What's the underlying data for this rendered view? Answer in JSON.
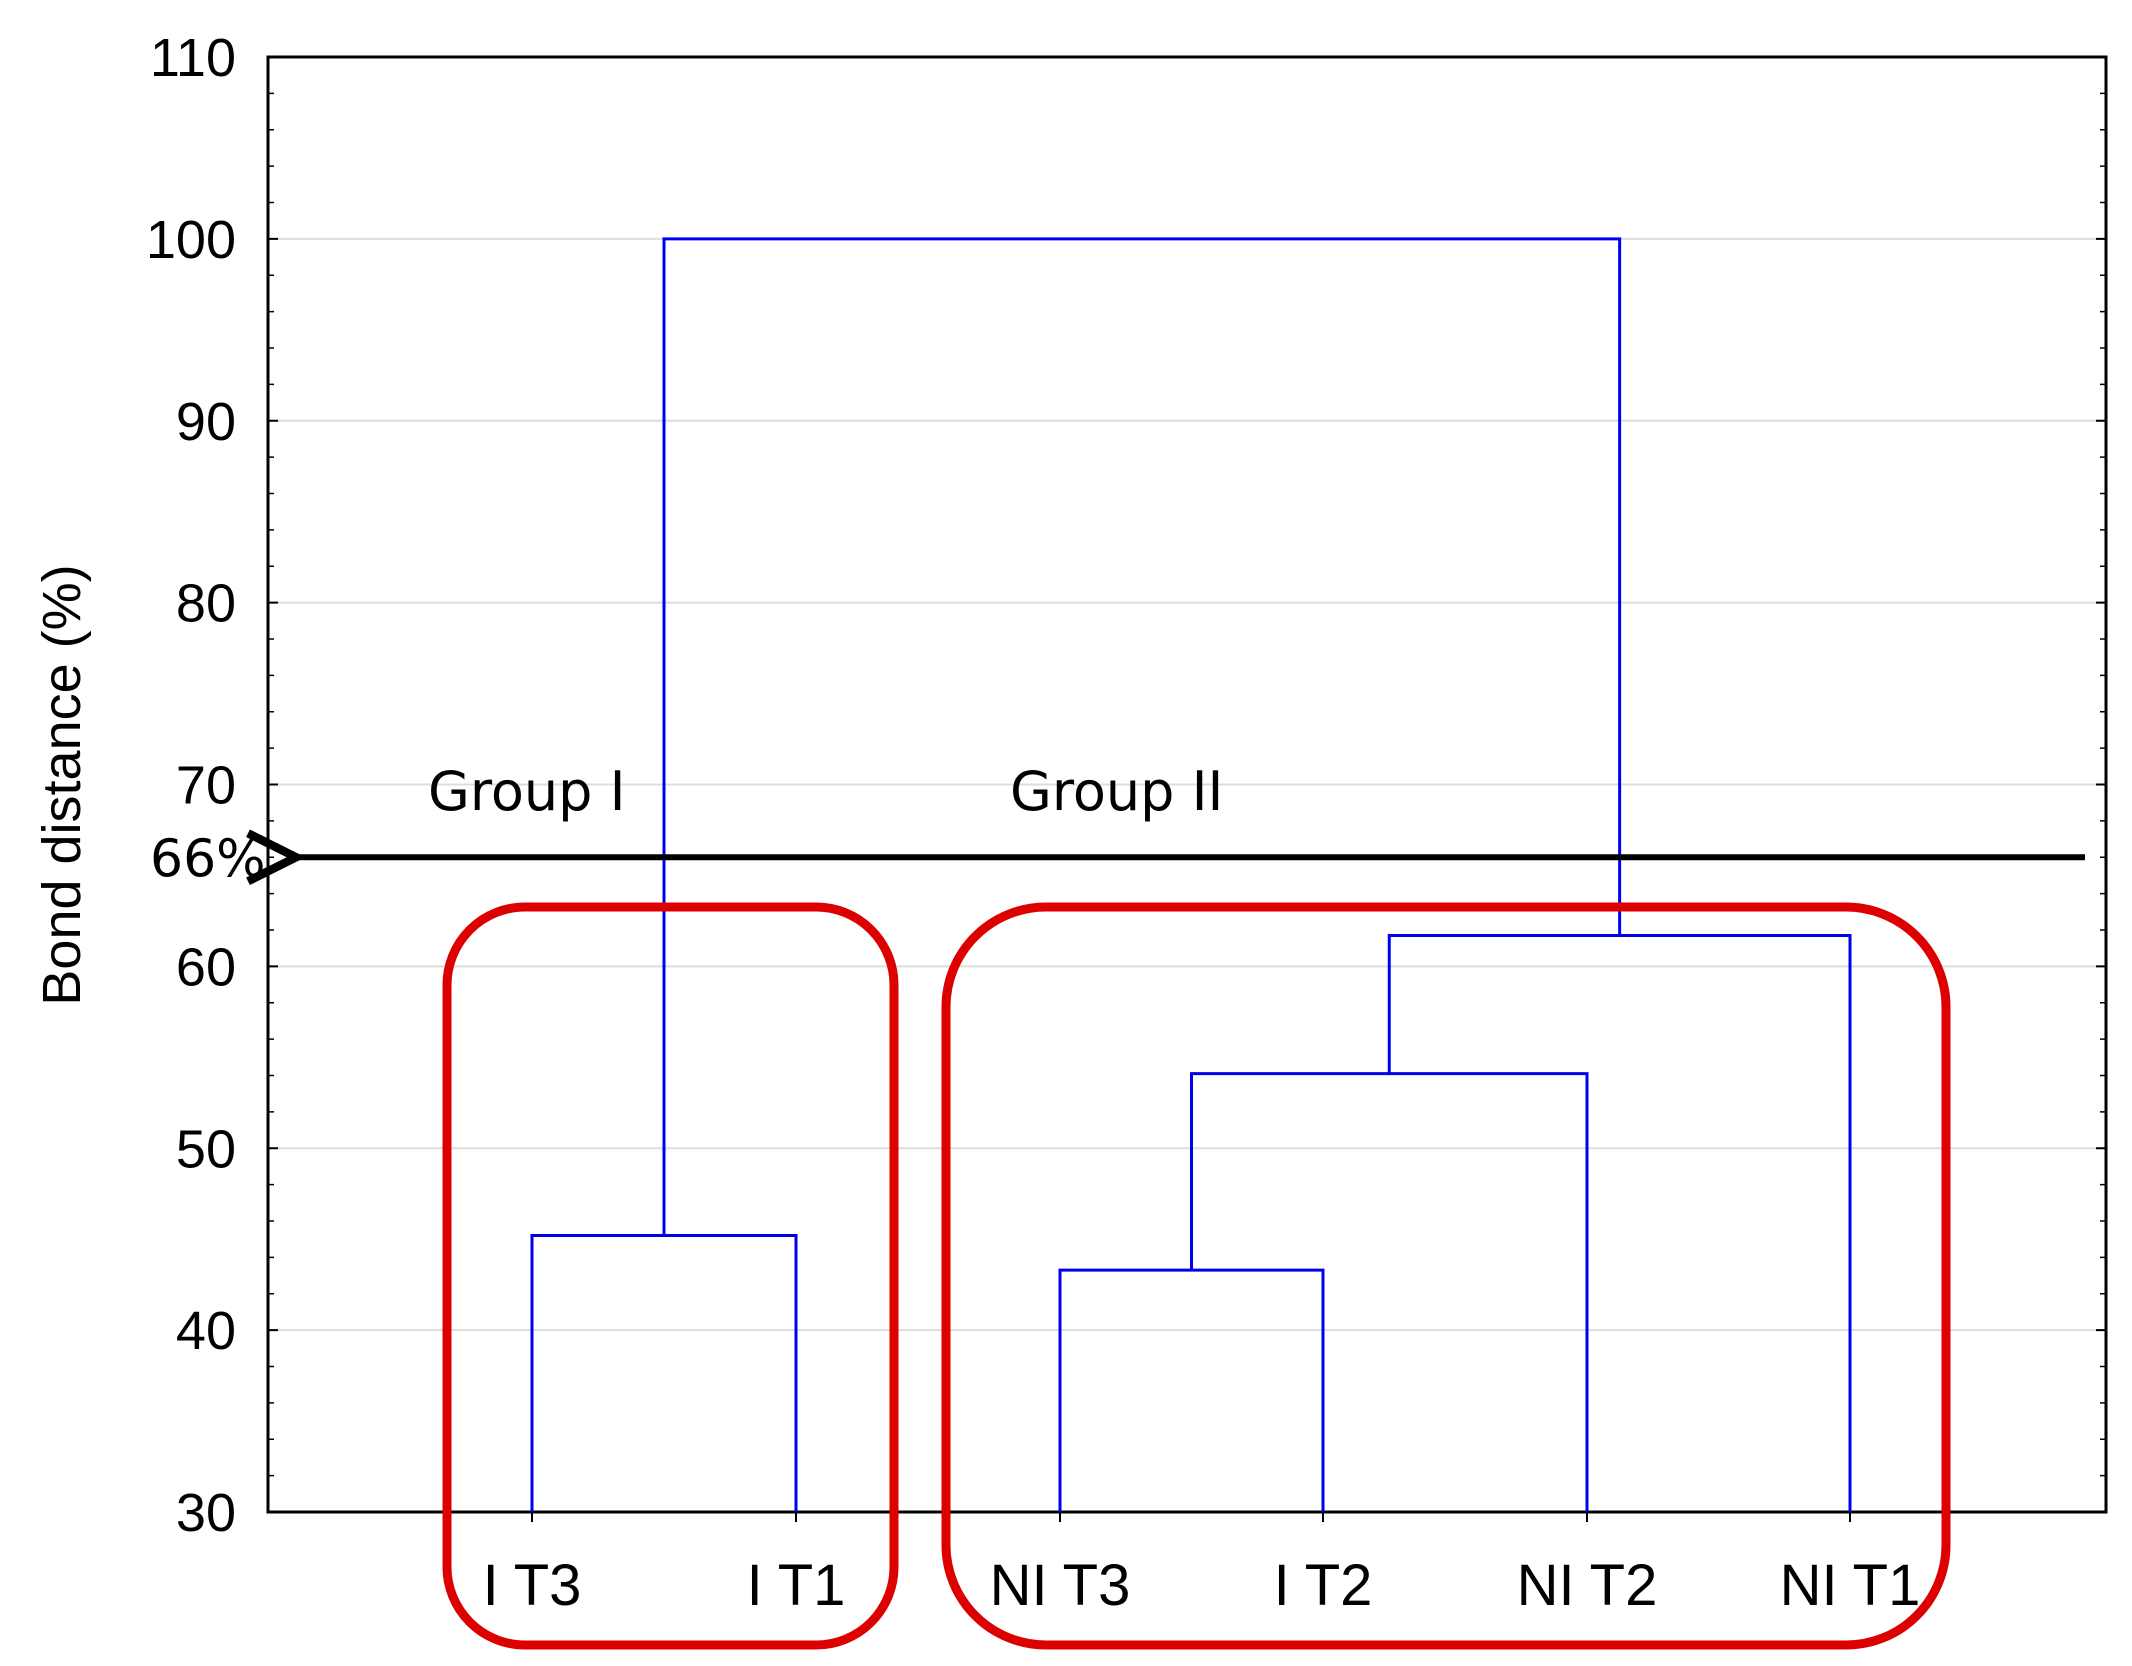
{
  "chart_data": {
    "type": "dendrogram",
    "ylabel": "Bond distance (%)",
    "ylim": [
      30,
      110
    ],
    "yticks": [
      30,
      40,
      50,
      60,
      70,
      80,
      90,
      100,
      110
    ],
    "grid": true,
    "leaves": [
      "I T3",
      "I T1",
      "NI T3",
      "I T2",
      "NI T2",
      "NI T1"
    ],
    "merges": [
      {
        "left": "I T3",
        "right": "I T1",
        "height": 45.2
      },
      {
        "left": "NI T3",
        "right": "I T2",
        "height": 43.3
      },
      {
        "left": "NI T3 + I T2",
        "right": "NI T2",
        "height": 54.1
      },
      {
        "left": "NI T3 + I T2 + NI T2",
        "right": "NI T1",
        "height": 61.7
      },
      {
        "left": "Group I",
        "right": "Group II",
        "height": 100
      }
    ],
    "threshold": {
      "value": 66,
      "label": "66%"
    },
    "groups": [
      {
        "label": "Group I",
        "members": [
          "I T3",
          "I T1"
        ]
      },
      {
        "label": "Group II",
        "members": [
          "NI T3",
          "I T2",
          "NI T2",
          "NI T1"
        ]
      }
    ],
    "colors": {
      "dendrogram": "#0000ee",
      "group_box": "#dd0000",
      "grid": "#dddddd",
      "threshold": "#000000"
    }
  }
}
